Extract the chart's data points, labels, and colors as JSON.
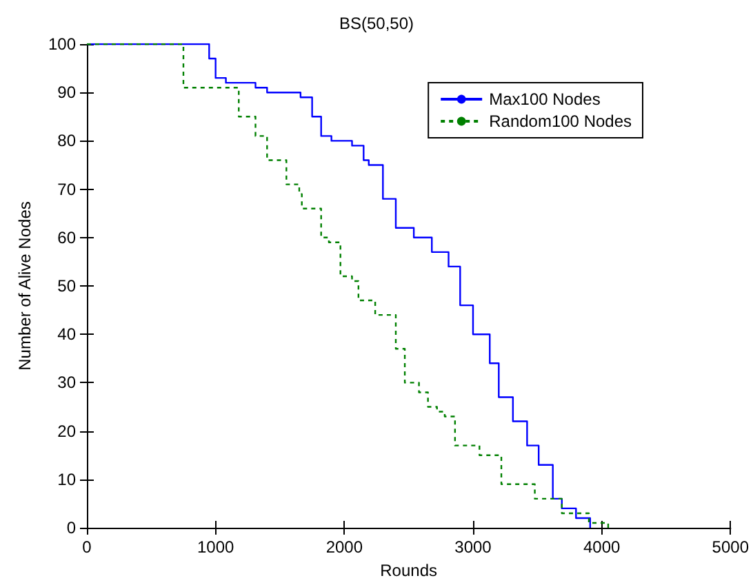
{
  "chart_data": {
    "type": "step",
    "title": "BS(50,50)",
    "xlabel": "Rounds",
    "ylabel": "Number of Alive Nodes",
    "xlim": [
      0,
      5000
    ],
    "xticks": [
      0,
      1000,
      2000,
      3000,
      4000,
      5000
    ],
    "ylim": [
      0,
      100
    ],
    "yticks": [
      0,
      10,
      20,
      30,
      40,
      50,
      60,
      70,
      80,
      90,
      100
    ],
    "grid": false,
    "legend": "top right",
    "marker": "none",
    "series": [
      {
        "name": "Max100 Nodes",
        "color": "#0000ff",
        "line_style": "solid",
        "x": [
          0,
          890,
          950,
          1000,
          1080,
          1310,
          1400,
          1660,
          1750,
          1820,
          1900,
          2060,
          2150,
          2190,
          2300,
          2400,
          2540,
          2680,
          2810,
          2900,
          3000,
          3130,
          3200,
          3310,
          3420,
          3510,
          3620,
          3690,
          3800,
          3910
        ],
        "values": [
          100,
          100,
          97,
          93,
          92,
          91,
          90,
          89,
          85,
          81,
          80,
          79,
          76,
          75,
          68,
          62,
          60,
          57,
          54,
          46,
          40,
          34,
          27,
          22,
          17,
          13,
          6,
          4,
          2,
          0
        ]
      },
      {
        "name": "Random100 Nodes",
        "color": "#008000",
        "line_style": "dashed",
        "x": [
          0,
          670,
          750,
          1040,
          1180,
          1310,
          1400,
          1550,
          1650,
          1670,
          1820,
          1880,
          1970,
          2060,
          2110,
          2240,
          2400,
          2470,
          2580,
          2650,
          2720,
          2780,
          2860,
          3050,
          3220,
          3480,
          3690,
          3900,
          4050
        ],
        "values": [
          100,
          100,
          91,
          91,
          85,
          81,
          76,
          71,
          69,
          66,
          60,
          59,
          52,
          51,
          47,
          44,
          37,
          30,
          28,
          25,
          24,
          23,
          17,
          15,
          9,
          6,
          3,
          1,
          0
        ]
      }
    ]
  }
}
